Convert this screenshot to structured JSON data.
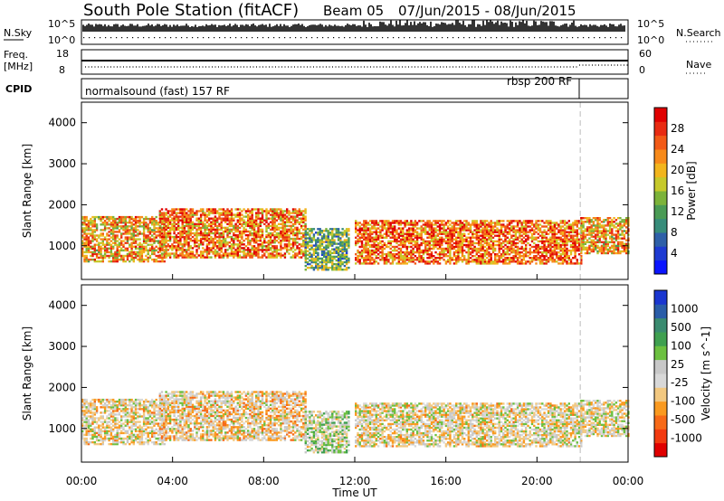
{
  "header": {
    "station": "South Pole Station (fitACF)",
    "beam": "Beam 05",
    "daterange": "07/Jun/2015 - 08/Jun/2015"
  },
  "top_panels": {
    "nsky_label": "N.Sky",
    "nsky_ticks": [
      "10^5",
      "10^0"
    ],
    "nsearch_label": "N.Search",
    "nsearch_ticks": [
      "10^5",
      "10^0"
    ],
    "freq_label_line1": "Freq.",
    "freq_label_line2": "[MHz]",
    "freq_ticks": [
      "18",
      "8"
    ],
    "nave_label": "Nave",
    "nave_ticks": [
      "60",
      "0"
    ],
    "cpid_label": "CPID",
    "cpid_modes": [
      "normalsound (fast) 157 RF",
      "rbsp 200 RF"
    ]
  },
  "chart_data": [
    {
      "type": "heatmap",
      "title": "",
      "ylabel": "Slant Range [km]",
      "ylim": [
        180,
        4500
      ],
      "yticks": [
        1000,
        2000,
        3000,
        4000
      ],
      "x_range_hours": [
        0,
        24
      ],
      "colorbar": {
        "label": "Power [dB]",
        "ticks": [
          "28",
          "24",
          "20",
          "16",
          "12",
          "8",
          "4"
        ],
        "range": [
          0,
          30
        ],
        "colors": [
          "#0b15ff",
          "#1e3bd2",
          "#2e60a8",
          "#378c7a",
          "#4a9b55",
          "#7cb33a",
          "#c6c92b",
          "#f2b51d",
          "#f78a1a",
          "#f25a17",
          "#e82b12",
          "#e00000"
        ]
      },
      "echo_bands": [
        {
          "t0": 0.0,
          "t1": 3.6,
          "r_low": 600,
          "r_high": 1700,
          "mean": 20
        },
        {
          "t0": 3.4,
          "t1": 9.8,
          "r_low": 700,
          "r_high": 1900,
          "mean": 22
        },
        {
          "t0": 9.8,
          "t1": 11.7,
          "r_low": 400,
          "r_high": 1400,
          "mean": 12
        },
        {
          "t0": 12.0,
          "t1": 21.9,
          "r_low": 550,
          "r_high": 1600,
          "mean": 23
        },
        {
          "t0": 21.9,
          "t1": 24.0,
          "r_low": 800,
          "r_high": 1700,
          "mean": 20
        }
      ]
    },
    {
      "type": "heatmap",
      "title": "",
      "ylabel": "Slant Range [km]",
      "ylim": [
        180,
        4500
      ],
      "yticks": [
        1000,
        2000,
        3000,
        4000
      ],
      "x_range_hours": [
        0,
        24
      ],
      "colorbar": {
        "label": "Velocity [m s^-1]",
        "ticks": [
          "1000",
          "500",
          "100",
          "25",
          "-25",
          "-100",
          "-500",
          "-1000"
        ],
        "range": [
          -1100,
          1100
        ],
        "colors": [
          "#e00000",
          "#f23a10",
          "#f76a18",
          "#fa9a20",
          "#f2c880",
          "#d8d8d8",
          "#c8c8c8",
          "#6cc040",
          "#3fa050",
          "#3a8b70",
          "#2a5da8",
          "#1a36d0"
        ]
      },
      "echo_bands": [
        {
          "t0": 0.0,
          "t1": 3.6,
          "r_low": 600,
          "r_high": 1700,
          "mean": -150
        },
        {
          "t0": 3.4,
          "t1": 9.8,
          "r_low": 700,
          "r_high": 1900,
          "mean": -200
        },
        {
          "t0": 9.8,
          "t1": 11.7,
          "r_low": 400,
          "r_high": 1400,
          "mean": 50
        },
        {
          "t0": 12.0,
          "t1": 21.9,
          "r_low": 550,
          "r_high": 1600,
          "mean": -120
        },
        {
          "t0": 21.9,
          "t1": 24.0,
          "r_low": 800,
          "r_high": 1700,
          "mean": -100
        }
      ]
    }
  ],
  "xaxis": {
    "label": "Time UT",
    "ticks": [
      "00:00",
      "04:00",
      "08:00",
      "12:00",
      "16:00",
      "20:00",
      "00:00"
    ]
  },
  "mode_change_hour": 21.9
}
